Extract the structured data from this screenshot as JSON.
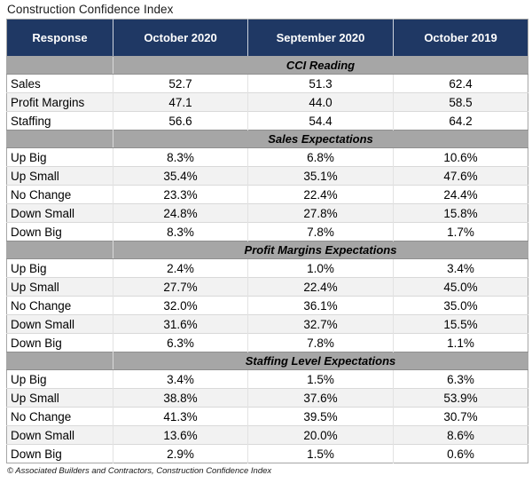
{
  "title": "Construction Confidence Index",
  "columns": [
    "Response",
    "October 2020",
    "September 2020",
    "October 2019"
  ],
  "sections": [
    {
      "label": "CCI Reading",
      "rows": [
        {
          "response": "Sales",
          "values": [
            "52.7",
            "51.3",
            "62.4"
          ]
        },
        {
          "response": "Profit Margins",
          "values": [
            "47.1",
            "44.0",
            "58.5"
          ]
        },
        {
          "response": "Staffing",
          "values": [
            "56.6",
            "54.4",
            "64.2"
          ]
        }
      ]
    },
    {
      "label": "Sales Expectations",
      "rows": [
        {
          "response": "Up Big",
          "values": [
            "8.3%",
            "6.8%",
            "10.6%"
          ]
        },
        {
          "response": "Up Small",
          "values": [
            "35.4%",
            "35.1%",
            "47.6%"
          ]
        },
        {
          "response": "No Change",
          "values": [
            "23.3%",
            "22.4%",
            "24.4%"
          ]
        },
        {
          "response": "Down Small",
          "values": [
            "24.8%",
            "27.8%",
            "15.8%"
          ]
        },
        {
          "response": "Down Big",
          "values": [
            "8.3%",
            "7.8%",
            "1.7%"
          ]
        }
      ]
    },
    {
      "label": "Profit Margins Expectations",
      "rows": [
        {
          "response": "Up Big",
          "values": [
            "2.4%",
            "1.0%",
            "3.4%"
          ]
        },
        {
          "response": "Up Small",
          "values": [
            "27.7%",
            "22.4%",
            "45.0%"
          ]
        },
        {
          "response": "No Change",
          "values": [
            "32.0%",
            "36.1%",
            "35.0%"
          ]
        },
        {
          "response": "Down Small",
          "values": [
            "31.6%",
            "32.7%",
            "15.5%"
          ]
        },
        {
          "response": "Down Big",
          "values": [
            "6.3%",
            "7.8%",
            "1.1%"
          ]
        }
      ]
    },
    {
      "label": "Staffing Level Expectations",
      "rows": [
        {
          "response": "Up Big",
          "values": [
            "3.4%",
            "1.5%",
            "6.3%"
          ]
        },
        {
          "response": "Up Small",
          "values": [
            "38.8%",
            "37.6%",
            "53.9%"
          ]
        },
        {
          "response": "No Change",
          "values": [
            "41.3%",
            "39.5%",
            "30.7%"
          ]
        },
        {
          "response": "Down Small",
          "values": [
            "13.6%",
            "20.0%",
            "8.6%"
          ]
        },
        {
          "response": "Down Big",
          "values": [
            "2.9%",
            "1.5%",
            "0.6%"
          ]
        }
      ]
    }
  ],
  "footer": "© Associated Builders and Contractors, Construction Confidence Index",
  "colors": {
    "header_bg": "#1f3864",
    "header_text": "#ffffff",
    "section_bg": "#a6a6a6",
    "alt_row_bg": "#f2f2f2",
    "row_bg": "#ffffff",
    "grid_line": "#d9d9d9"
  }
}
